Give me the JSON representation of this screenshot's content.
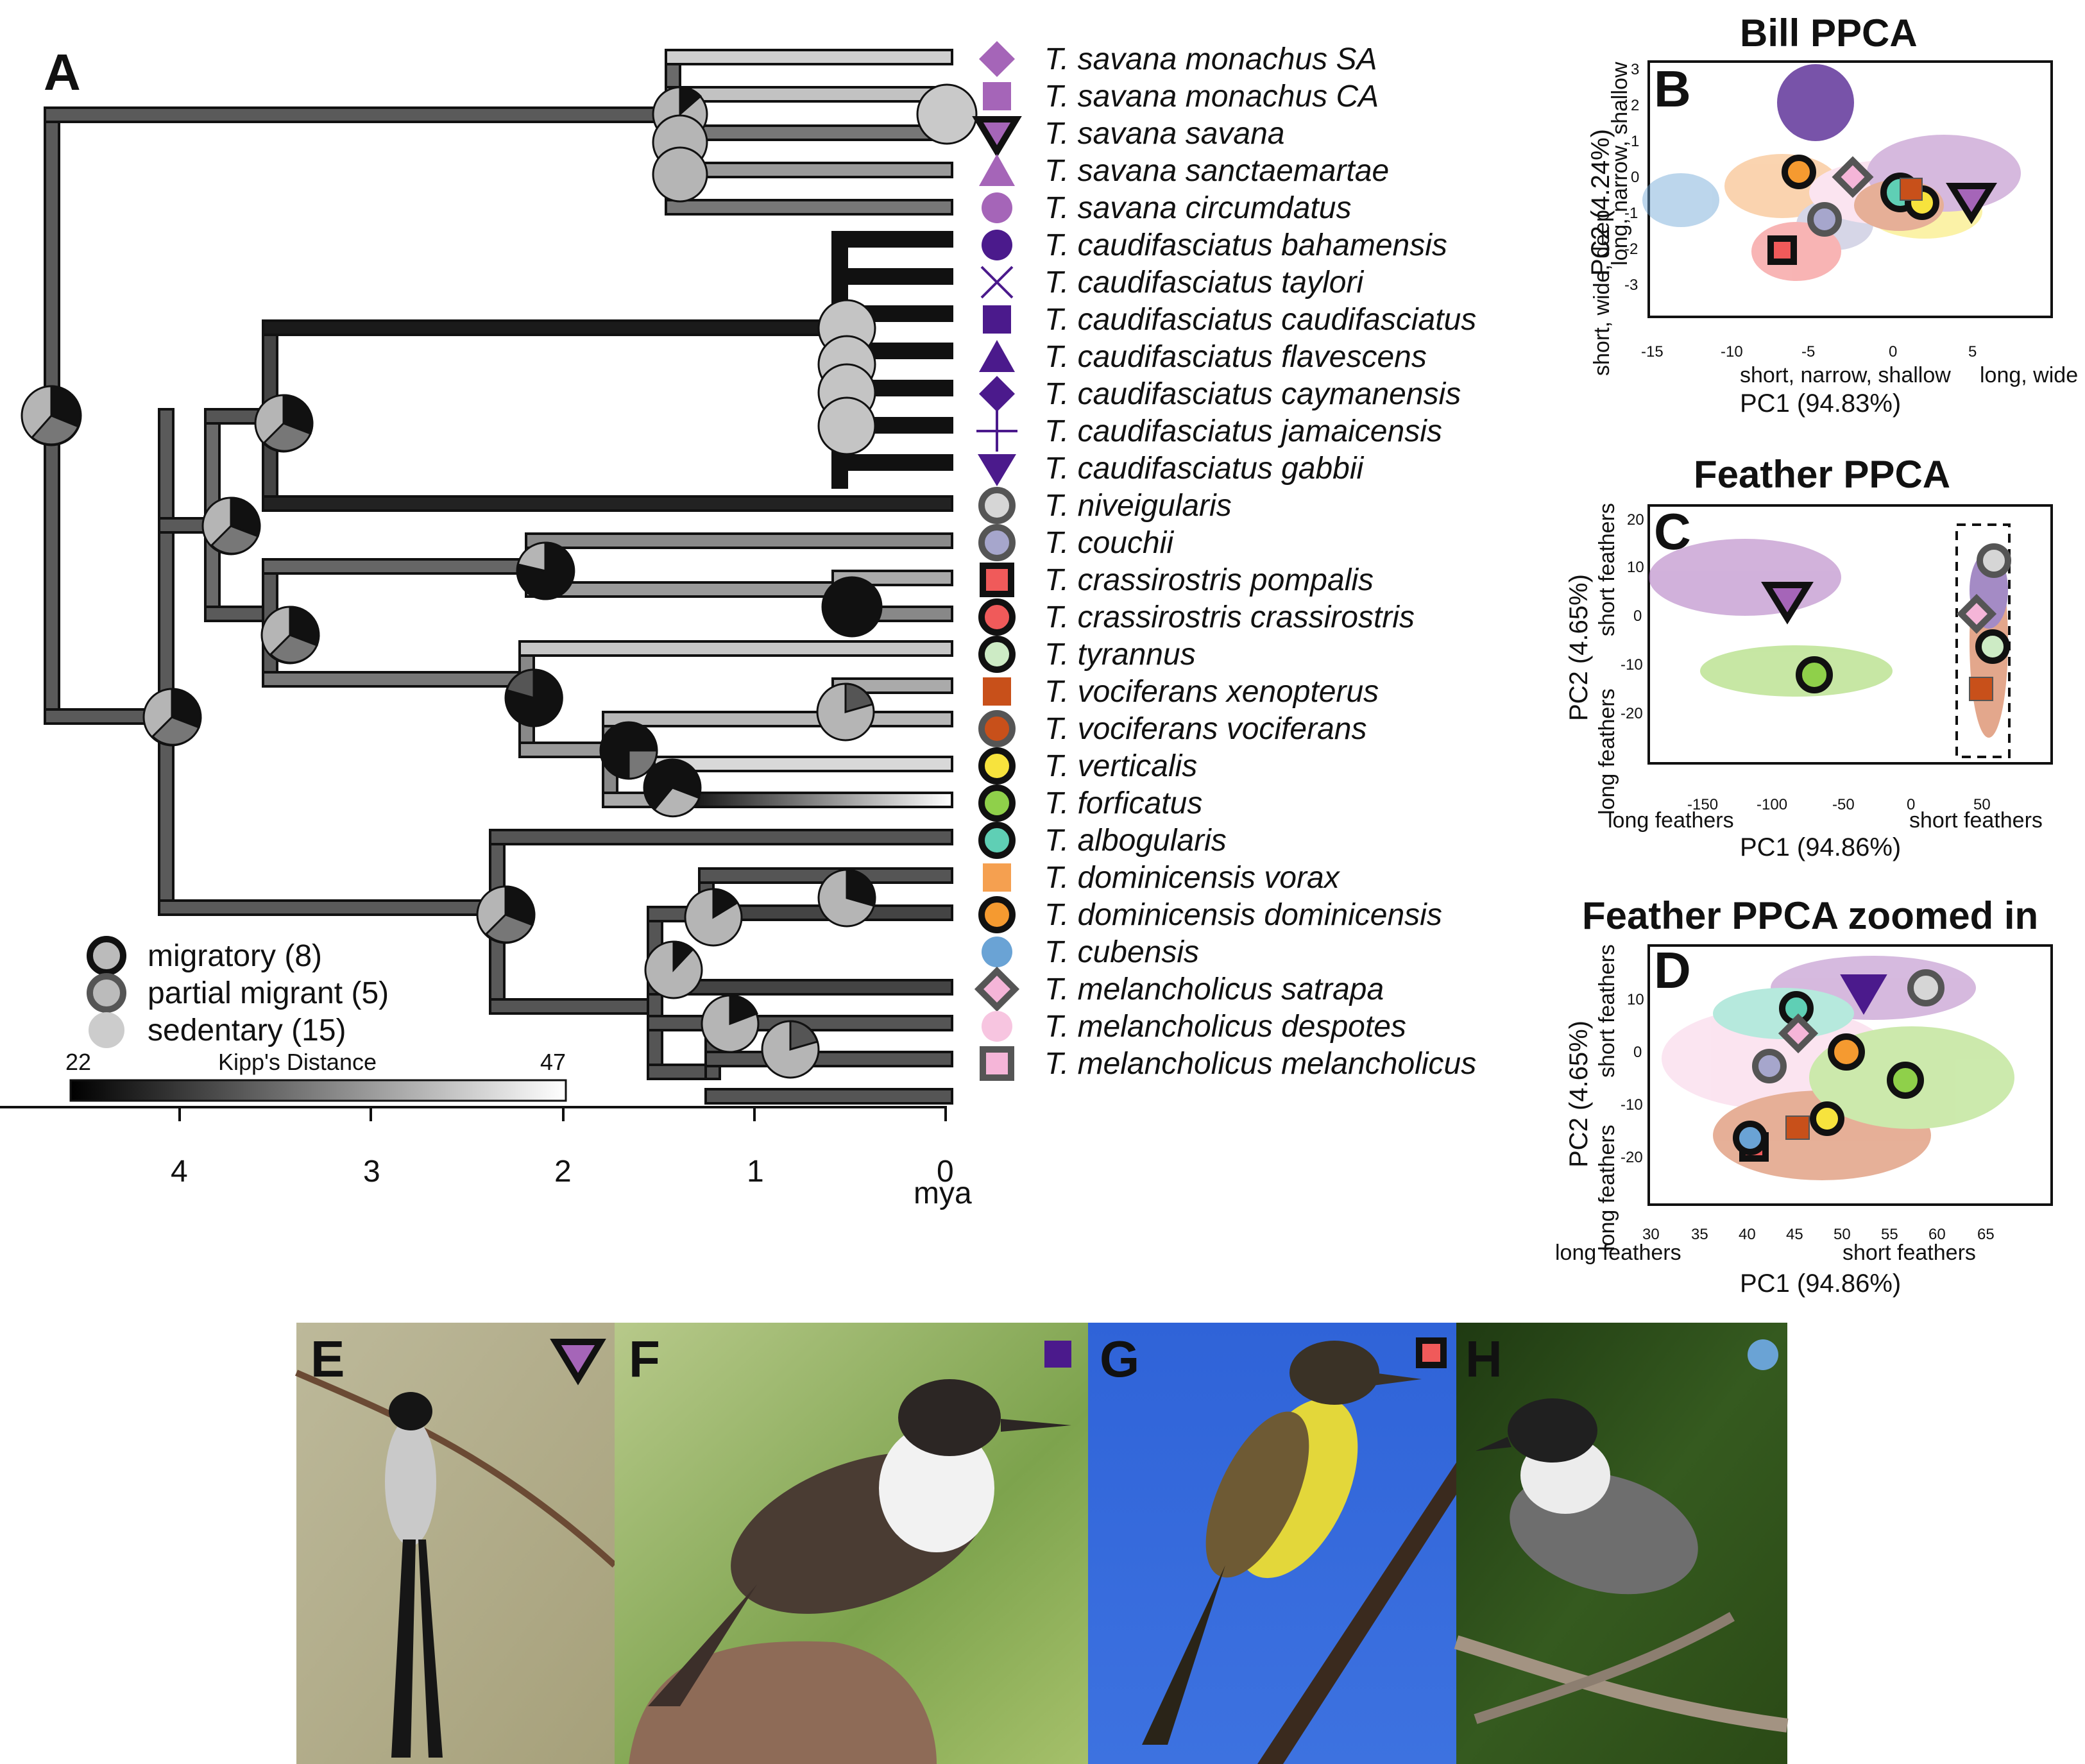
{
  "panelA": {
    "letter": "A",
    "taxa": [
      {
        "name": "T. savana monachus SA",
        "color": "#a565b8",
        "shape": "diamond",
        "ring": "none"
      },
      {
        "name": "T. savana monachus CA",
        "color": "#a565b8",
        "shape": "square",
        "ring": "none"
      },
      {
        "name": "T. savana savana",
        "color": "#a565b8",
        "shape": "triangle-down",
        "ring": "migratory"
      },
      {
        "name": "T. savana sanctaemartae",
        "color": "#a565b8",
        "shape": "triangle-up",
        "ring": "none"
      },
      {
        "name": "T. savana circumdatus",
        "color": "#a565b8",
        "shape": "circle",
        "ring": "none"
      },
      {
        "name": "T. caudifasciatus bahamensis",
        "color": "#4b1a8c",
        "shape": "circle",
        "ring": "none"
      },
      {
        "name": "T. caudifasciatus taylori",
        "color": "#4b1a8c",
        "shape": "cross-x",
        "ring": "none"
      },
      {
        "name": "T. caudifasciatus caudifasciatus",
        "color": "#4b1a8c",
        "shape": "square",
        "ring": "none"
      },
      {
        "name": "T. caudifasciatus flavescens",
        "color": "#4b1a8c",
        "shape": "triangle-up",
        "ring": "none"
      },
      {
        "name": "T. caudifasciatus caymanensis",
        "color": "#4b1a8c",
        "shape": "diamond",
        "ring": "none"
      },
      {
        "name": "T. caudifasciatus jamaicensis",
        "color": "#4b1a8c",
        "shape": "plus",
        "ring": "none"
      },
      {
        "name": "T. caudifasciatus gabbii",
        "color": "#4b1a8c",
        "shape": "triangle-down",
        "ring": "none"
      },
      {
        "name": "T. niveigularis",
        "color": "#d6d6d6",
        "shape": "circle",
        "ring": "partial"
      },
      {
        "name": "T. couchii",
        "color": "#a6a6cc",
        "shape": "circle",
        "ring": "partial"
      },
      {
        "name": "T. crassirostris pompalis",
        "color": "#f05a5a",
        "shape": "square",
        "ring": "migratory"
      },
      {
        "name": "T. crassirostris crassirostris",
        "color": "#f05a5a",
        "shape": "circle",
        "ring": "migratory"
      },
      {
        "name": "T. tyrannus",
        "color": "#cdebc5",
        "shape": "circle",
        "ring": "migratory"
      },
      {
        "name": "T. vociferans xenopterus",
        "color": "#c8501a",
        "shape": "square",
        "ring": "none"
      },
      {
        "name": "T. vociferans vociferans",
        "color": "#c8501a",
        "shape": "circle",
        "ring": "partial"
      },
      {
        "name": "T. verticalis",
        "color": "#f7e33d",
        "shape": "circle",
        "ring": "migratory"
      },
      {
        "name": "T. forficatus",
        "color": "#8fd04a",
        "shape": "circle",
        "ring": "migratory"
      },
      {
        "name": "T. albogularis",
        "color": "#5fcfb5",
        "shape": "circle",
        "ring": "migratory"
      },
      {
        "name": "T. dominicensis vorax",
        "color": "#f5a050",
        "shape": "square",
        "ring": "none"
      },
      {
        "name": "T. dominicensis dominicensis",
        "color": "#f59a30",
        "shape": "circle",
        "ring": "migratory"
      },
      {
        "name": "T. cubensis",
        "color": "#6aa3d5",
        "shape": "circle",
        "ring": "none"
      },
      {
        "name": "T. melancholicus satrapa",
        "color": "#f5b5d8",
        "shape": "diamond",
        "ring": "partial"
      },
      {
        "name": "T. melancholicus despotes",
        "color": "#f7c5e0",
        "shape": "circle",
        "ring": "none"
      },
      {
        "name": "T. melancholicus melancholicus",
        "color": "#f5b5d8",
        "shape": "square",
        "ring": "partial"
      }
    ],
    "legend": [
      {
        "label": "migratory (8)",
        "ring": "#111111",
        "fill": "#bbbbbb"
      },
      {
        "label": "partial migrant (5)",
        "ring": "#555555",
        "fill": "#bbbbbb"
      },
      {
        "label": "sedentary (15)",
        "ring": "#cccccc",
        "fill": "#cccccc"
      }
    ],
    "kipp": {
      "min_label": "22",
      "max_label": "47",
      "title": "Kipp's Distance"
    },
    "time_axis": {
      "ticks": [
        "4",
        "3",
        "2",
        "1",
        "0"
      ],
      "unit": "mya"
    }
  },
  "panelB": {
    "letter": "B",
    "title": "Bill PPCA",
    "ylabel": "PC2 (4.24%)",
    "ysub": "short, wide, deep",
    "ysub2": "long, narrow, shallow",
    "xlabel": "PC1 (94.83%)",
    "xsub_left": "short, narrow, shallow",
    "xsub_right": "long, wide",
    "xticks": [
      "-15",
      "-10",
      "-5",
      "0",
      "5"
    ],
    "yticks": [
      "3",
      "2",
      "1",
      "0",
      "-1",
      "-2",
      "-3"
    ]
  },
  "panelC": {
    "letter": "C",
    "title": "Feather PPCA",
    "ylabel": "PC2 (4.65%)",
    "ysub_top": "short feathers",
    "ysub_bottom": "long feathers",
    "xlabel": "PC1 (94.86%)",
    "xsub_left": "long feathers",
    "xsub_right": "short feathers",
    "xticks": [
      "-150",
      "-100",
      "-50",
      "0",
      "50"
    ],
    "yticks": [
      "20",
      "10",
      "0",
      "-10",
      "-20"
    ]
  },
  "panelD": {
    "letter": "D",
    "title": "Feather PPCA zoomed in",
    "ylabel": "PC2 (4.65%)",
    "ysub_top": "short feathers",
    "ysub_bottom": "long feathers",
    "xlabel": "PC1 (94.86%)",
    "xsub_left": "long feathers",
    "xsub_right": "short feathers",
    "xticks": [
      "30",
      "35",
      "40",
      "45",
      "50",
      "55",
      "60",
      "65"
    ],
    "yticks": [
      "10",
      "0",
      "-10",
      "-20"
    ]
  },
  "photos": [
    {
      "letter": "E",
      "subject": "fork-tailed flycatcher"
    },
    {
      "letter": "F",
      "subject": "kingbird on rock"
    },
    {
      "letter": "G",
      "subject": "yellow-bellied kingbird on branch"
    },
    {
      "letter": "H",
      "subject": "giant kingbird on branch"
    }
  ]
}
